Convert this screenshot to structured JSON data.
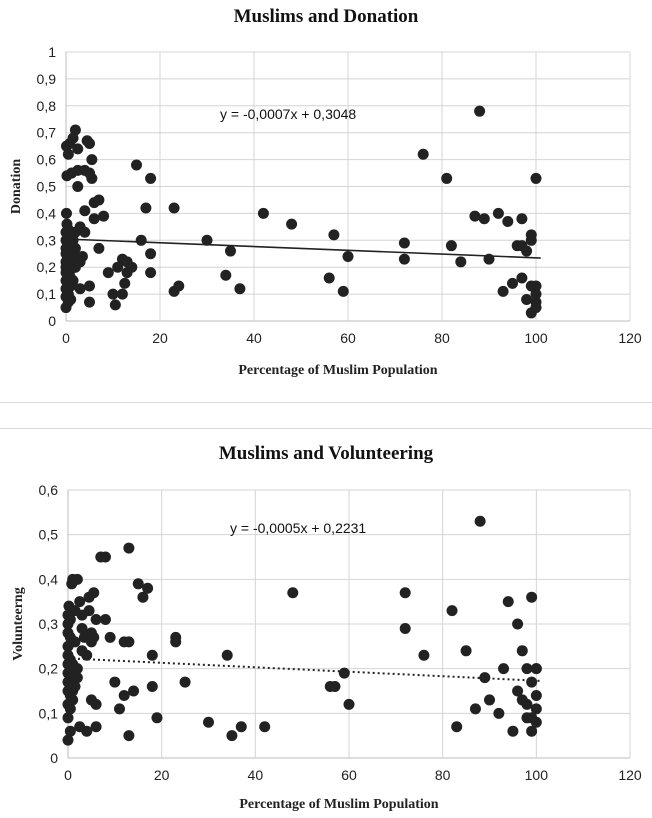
{
  "chart_data": [
    {
      "type": "scatter",
      "title": "Muslims and Donation",
      "xlabel": "Percentage of Muslim Population",
      "ylabel": "Donation",
      "xlim": [
        0,
        120
      ],
      "ylim": [
        0,
        1
      ],
      "x_ticks": [
        "0",
        "20",
        "40",
        "60",
        "80",
        "100",
        "120"
      ],
      "y_ticks": [
        "0",
        "0,1",
        "0,2",
        "0,3",
        "0,4",
        "0,5",
        "0,6",
        "0,7",
        "0,8",
        "0,9",
        "1"
      ],
      "grid": true,
      "trendline": {
        "slope": -0.0007,
        "intercept": 0.3048,
        "style": "solid",
        "x_range": [
          0,
          101
        ]
      },
      "equation": "y = -0,0007x + 0,3048",
      "points": [
        [
          0,
          0.05
        ],
        [
          0,
          0.09
        ],
        [
          0,
          0.12
        ],
        [
          0,
          0.15
        ],
        [
          0,
          0.18
        ],
        [
          0,
          0.2
        ],
        [
          0,
          0.22
        ],
        [
          0,
          0.25
        ],
        [
          0,
          0.27
        ],
        [
          0,
          0.3
        ],
        [
          0,
          0.33
        ],
        [
          0.2,
          0.36
        ],
        [
          0.1,
          0.4
        ],
        [
          0.2,
          0.54
        ],
        [
          0.1,
          0.65
        ],
        [
          0.5,
          0.07
        ],
        [
          0.5,
          0.1
        ],
        [
          0.5,
          0.14
        ],
        [
          0.5,
          0.17
        ],
        [
          0.5,
          0.21
        ],
        [
          0.5,
          0.24
        ],
        [
          0.5,
          0.28
        ],
        [
          0.5,
          0.31
        ],
        [
          0.5,
          0.34
        ],
        [
          0.5,
          0.62
        ],
        [
          0.8,
          0.66
        ],
        [
          1,
          0.08
        ],
        [
          1,
          0.13
        ],
        [
          1,
          0.16
        ],
        [
          1,
          0.19
        ],
        [
          1,
          0.23
        ],
        [
          1,
          0.26
        ],
        [
          1,
          0.29
        ],
        [
          1,
          0.32
        ],
        [
          1.2,
          0.55
        ],
        [
          1.5,
          0.68
        ],
        [
          1.5,
          0.15
        ],
        [
          1.5,
          0.25
        ],
        [
          1.5,
          0.3
        ],
        [
          2,
          0.71
        ],
        [
          2,
          0.2
        ],
        [
          2,
          0.24
        ],
        [
          2,
          0.27
        ],
        [
          2,
          0.33
        ],
        [
          2.5,
          0.5
        ],
        [
          2.5,
          0.56
        ],
        [
          2.5,
          0.64
        ],
        [
          3,
          0.35
        ],
        [
          3,
          0.22
        ],
        [
          3,
          0.12
        ],
        [
          3.5,
          0.24
        ],
        [
          4,
          0.56
        ],
        [
          4,
          0.41
        ],
        [
          4,
          0.33
        ],
        [
          4.5,
          0.67
        ],
        [
          5,
          0.66
        ],
        [
          5,
          0.55
        ],
        [
          5,
          0.13
        ],
        [
          5,
          0.07
        ],
        [
          5.5,
          0.6
        ],
        [
          5.5,
          0.53
        ],
        [
          6,
          0.38
        ],
        [
          6,
          0.44
        ],
        [
          7,
          0.45
        ],
        [
          7,
          0.27
        ],
        [
          8,
          0.39
        ],
        [
          9,
          0.18
        ],
        [
          10,
          0.1
        ],
        [
          10.5,
          0.06
        ],
        [
          11,
          0.2
        ],
        [
          12,
          0.23
        ],
        [
          12,
          0.1
        ],
        [
          12.5,
          0.14
        ],
        [
          13,
          0.22
        ],
        [
          13,
          0.18
        ],
        [
          14,
          0.2
        ],
        [
          15,
          0.58
        ],
        [
          16,
          0.3
        ],
        [
          17,
          0.42
        ],
        [
          18,
          0.53
        ],
        [
          18,
          0.25
        ],
        [
          18,
          0.18
        ],
        [
          23,
          0.42
        ],
        [
          23,
          0.11
        ],
        [
          24,
          0.13
        ],
        [
          30,
          0.3
        ],
        [
          34,
          0.17
        ],
        [
          35,
          0.26
        ],
        [
          37,
          0.12
        ],
        [
          42,
          0.4
        ],
        [
          48,
          0.36
        ],
        [
          56,
          0.16
        ],
        [
          57,
          0.32
        ],
        [
          59,
          0.11
        ],
        [
          60,
          0.24
        ],
        [
          72,
          0.29
        ],
        [
          72,
          0.23
        ],
        [
          76,
          0.62
        ],
        [
          81,
          0.53
        ],
        [
          82,
          0.28
        ],
        [
          84,
          0.22
        ],
        [
          87,
          0.39
        ],
        [
          88,
          0.78
        ],
        [
          89,
          0.38
        ],
        [
          90,
          0.23
        ],
        [
          92,
          0.4
        ],
        [
          93,
          0.11
        ],
        [
          94,
          0.37
        ],
        [
          95,
          0.14
        ],
        [
          96,
          0.28
        ],
        [
          97,
          0.38
        ],
        [
          97,
          0.28
        ],
        [
          97,
          0.16
        ],
        [
          98,
          0.26
        ],
        [
          98,
          0.08
        ],
        [
          99,
          0.13
        ],
        [
          99,
          0.03
        ],
        [
          99,
          0.3
        ],
        [
          99,
          0.32
        ],
        [
          100,
          0.1
        ],
        [
          100,
          0.07
        ],
        [
          100,
          0.05
        ],
        [
          100,
          0.53
        ],
        [
          100,
          0.13
        ]
      ]
    },
    {
      "type": "scatter",
      "title": "Muslims and Volunteering",
      "xlabel": "Percentage of Muslim Population",
      "ylabel": "Volunteerng",
      "xlim": [
        0,
        120
      ],
      "ylim": [
        0,
        0.6
      ],
      "x_ticks": [
        "0",
        "20",
        "40",
        "60",
        "80",
        "100",
        "120"
      ],
      "y_ticks": [
        "0",
        "0,1",
        "0,2",
        "0,3",
        "0,4",
        "0,5",
        "0,6"
      ],
      "grid": true,
      "trendline": {
        "slope": -0.0005,
        "intercept": 0.2231,
        "style": "dotted",
        "x_range": [
          0,
          101
        ]
      },
      "equation": "y = -0,0005x + 0,2231",
      "points": [
        [
          0,
          0.04
        ],
        [
          0,
          0.09
        ],
        [
          0,
          0.12
        ],
        [
          0,
          0.15
        ],
        [
          0,
          0.17
        ],
        [
          0,
          0.19
        ],
        [
          0,
          0.21
        ],
        [
          0,
          0.23
        ],
        [
          0,
          0.25
        ],
        [
          0,
          0.28
        ],
        [
          0,
          0.3
        ],
        [
          0,
          0.32
        ],
        [
          0.2,
          0.34
        ],
        [
          0.5,
          0.06
        ],
        [
          0.5,
          0.11
        ],
        [
          0.5,
          0.14
        ],
        [
          0.5,
          0.16
        ],
        [
          0.5,
          0.18
        ],
        [
          0.5,
          0.2
        ],
        [
          0.5,
          0.22
        ],
        [
          0.5,
          0.27
        ],
        [
          0.5,
          0.31
        ],
        [
          0.8,
          0.39
        ],
        [
          1,
          0.4
        ],
        [
          1,
          0.13
        ],
        [
          1,
          0.15
        ],
        [
          1,
          0.17
        ],
        [
          1,
          0.19
        ],
        [
          1,
          0.21
        ],
        [
          1.5,
          0.26
        ],
        [
          1.5,
          0.33
        ],
        [
          1.5,
          0.16
        ],
        [
          2,
          0.4
        ],
        [
          2,
          0.18
        ],
        [
          2,
          0.2
        ],
        [
          2.5,
          0.35
        ],
        [
          2.5,
          0.07
        ],
        [
          3,
          0.32
        ],
        [
          3,
          0.29
        ],
        [
          3,
          0.24
        ],
        [
          3.5,
          0.27
        ],
        [
          4,
          0.06
        ],
        [
          4,
          0.23
        ],
        [
          4.5,
          0.33
        ],
        [
          4.5,
          0.36
        ],
        [
          5,
          0.28
        ],
        [
          5,
          0.26
        ],
        [
          5,
          0.13
        ],
        [
          5.5,
          0.37
        ],
        [
          5.5,
          0.27
        ],
        [
          6,
          0.12
        ],
        [
          6,
          0.07
        ],
        [
          6,
          0.31
        ],
        [
          7,
          0.45
        ],
        [
          8,
          0.45
        ],
        [
          8,
          0.31
        ],
        [
          9,
          0.27
        ],
        [
          10,
          0.17
        ],
        [
          11,
          0.11
        ],
        [
          12,
          0.26
        ],
        [
          12,
          0.14
        ],
        [
          13,
          0.26
        ],
        [
          13,
          0.47
        ],
        [
          13,
          0.05
        ],
        [
          14,
          0.15
        ],
        [
          15,
          0.39
        ],
        [
          16,
          0.36
        ],
        [
          17,
          0.38
        ],
        [
          18,
          0.23
        ],
        [
          18,
          0.16
        ],
        [
          19,
          0.09
        ],
        [
          23,
          0.27
        ],
        [
          23,
          0.26
        ],
        [
          25,
          0.17
        ],
        [
          30,
          0.08
        ],
        [
          34,
          0.23
        ],
        [
          35,
          0.05
        ],
        [
          37,
          0.07
        ],
        [
          42,
          0.07
        ],
        [
          48,
          0.37
        ],
        [
          56,
          0.16
        ],
        [
          57,
          0.16
        ],
        [
          59,
          0.19
        ],
        [
          60,
          0.12
        ],
        [
          72,
          0.37
        ],
        [
          72,
          0.29
        ],
        [
          76,
          0.23
        ],
        [
          82,
          0.33
        ],
        [
          83,
          0.07
        ],
        [
          85,
          0.24
        ],
        [
          87,
          0.11
        ],
        [
          88,
          0.53
        ],
        [
          89,
          0.18
        ],
        [
          90,
          0.13
        ],
        [
          92,
          0.1
        ],
        [
          93,
          0.2
        ],
        [
          94,
          0.35
        ],
        [
          95,
          0.06
        ],
        [
          96,
          0.3
        ],
        [
          96,
          0.15
        ],
        [
          97,
          0.13
        ],
        [
          97,
          0.24
        ],
        [
          98,
          0.12
        ],
        [
          98,
          0.09
        ],
        [
          98,
          0.2
        ],
        [
          99,
          0.17
        ],
        [
          99,
          0.06
        ],
        [
          99,
          0.09
        ],
        [
          99,
          0.36
        ],
        [
          100,
          0.2
        ],
        [
          100,
          0.14
        ],
        [
          100,
          0.11
        ],
        [
          100,
          0.08
        ],
        [
          100,
          0.2
        ]
      ]
    }
  ]
}
